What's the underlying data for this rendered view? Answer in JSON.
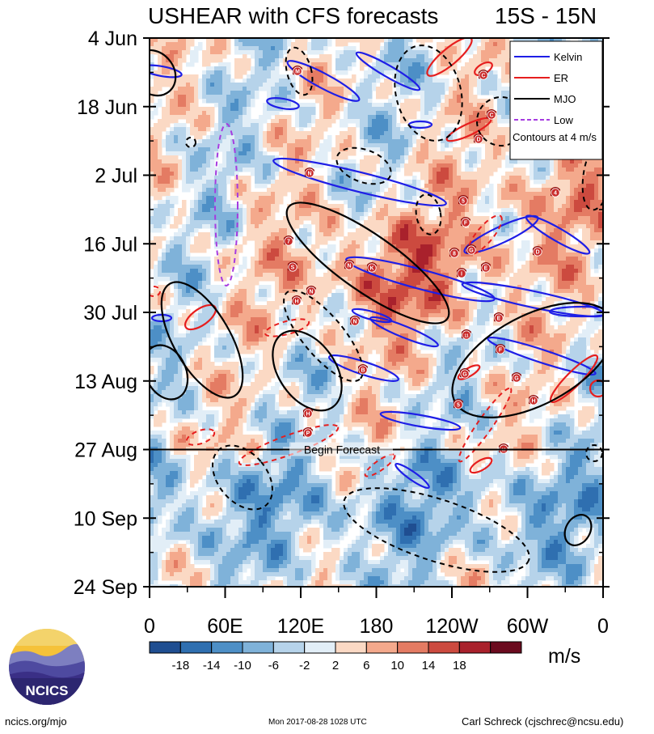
{
  "header": {
    "title_left": "USHEAR with CFS forecasts",
    "title_right": "15S - 15N"
  },
  "chart_data": {
    "type": "heatmap",
    "title": "USHEAR with CFS forecasts",
    "region": "15S - 15N",
    "y_axis": {
      "label": "",
      "ticks": [
        "4 Jun",
        "18 Jun",
        "2 Jul",
        "16 Jul",
        "30 Jul",
        "13 Aug",
        "27 Aug",
        "10 Sep",
        "24 Sep"
      ],
      "range": [
        "4 Jun",
        "24 Sep"
      ]
    },
    "x_axis": {
      "label": "",
      "ticks": [
        "0",
        "60E",
        "120E",
        "180",
        "120W",
        "60W",
        "0"
      ],
      "range_deg_east": [
        0,
        360
      ]
    },
    "colorbar": {
      "units": "m/s",
      "levels": [
        "-18",
        "-14",
        "-10",
        "-6",
        "-2",
        "2",
        "6",
        "10",
        "14",
        "18"
      ],
      "colors": [
        "#1f4e91",
        "#2f6fb0",
        "#4d8fc6",
        "#7fb2d9",
        "#b6d3ea",
        "#e2eef7",
        "#ffffff",
        "#fbd9c4",
        "#f4a98c",
        "#e47b63",
        "#cc4a3f",
        "#a9212c",
        "#6b0a1e"
      ]
    },
    "forecast_start": "27 Aug",
    "forecast_label": "Begin Forecast",
    "contour_interval": "Contours at 4 m/s",
    "legend": [
      {
        "label": "Kelvin",
        "color": "#1e1ee6"
      },
      {
        "label": "ER",
        "color": "#e61e1e"
      },
      {
        "label": "MJO",
        "color": "#000000"
      },
      {
        "label": "Low",
        "color": "#a63be0"
      }
    ],
    "storm_markers": [
      "M",
      "C",
      "C",
      "D",
      "N",
      "4",
      "5",
      "F",
      "7",
      "S",
      "N",
      "K",
      "8",
      "G",
      "D",
      "E",
      "I",
      "N",
      "H",
      "N",
      "E",
      "11",
      "F",
      "B",
      "G",
      "G",
      "H",
      "H",
      "P",
      "12",
      "5"
    ]
  },
  "footer": {
    "left": "ncics.org/mjo",
    "center": "Mon 2017-08-28 1028 UTC",
    "right": "Carl Schreck (cjschrec@ncsu.edu)"
  },
  "logo": {
    "text": "NCICS"
  }
}
